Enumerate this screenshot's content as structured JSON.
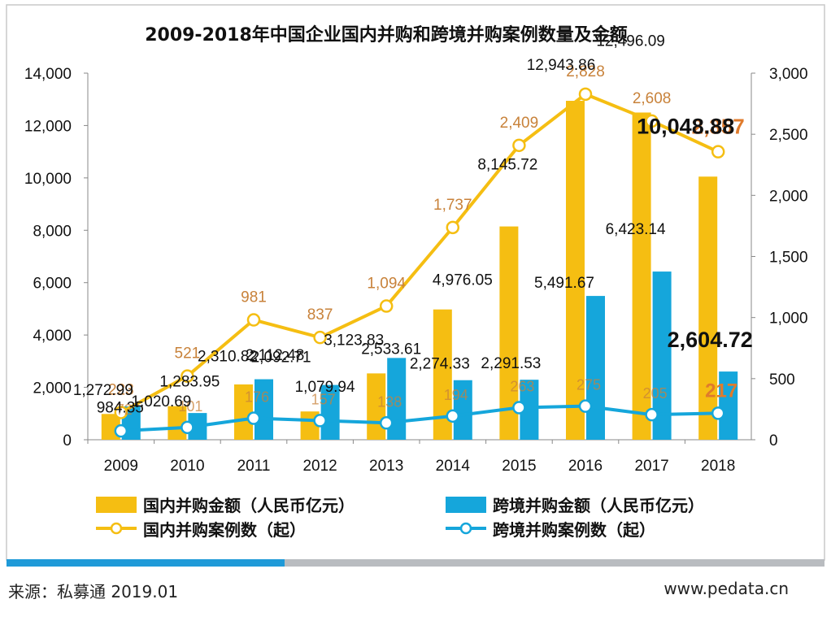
{
  "chart_data": {
    "type": "bar+line",
    "title": "2009-2018年中国企业国内并购和跨境并购案例数量及金额",
    "categories": [
      "2009",
      "2010",
      "2011",
      "2012",
      "2013",
      "2014",
      "2015",
      "2016",
      "2017",
      "2018"
    ],
    "left_axis": {
      "ylim": [
        0,
        14000
      ],
      "ticks": [
        "0",
        "2,000",
        "4,000",
        "6,000",
        "8,000",
        "10,000",
        "12,000",
        "14,000"
      ]
    },
    "right_axis": {
      "ylim": [
        0,
        3000
      ],
      "ticks": [
        "0",
        "500",
        "1,000",
        "1,500",
        "2,000",
        "2,500",
        "3,000"
      ]
    },
    "series": [
      {
        "name": "国内并购金额（人民币亿元）",
        "kind": "bar",
        "axis": "left",
        "color": "#f5be12",
        "values": [
          984.35,
          1283.95,
          2112.48,
          1079.94,
          2533.61,
          4976.05,
          8145.72,
          12943.86,
          12496.09,
          10048.88
        ],
        "labels": [
          "984.35",
          "1,283.95",
          "2,112.48",
          "1,079.94",
          "2,533.61",
          "4,976.05",
          "8,145.72",
          "12,943.86",
          "12,496.09",
          "10,048.88"
        ]
      },
      {
        "name": "跨境并购金额（人民币亿元）",
        "kind": "bar",
        "axis": "left",
        "color": "#15a6db",
        "values": [
          1272.99,
          1020.69,
          2310.82,
          2092.71,
          3123.83,
          2274.33,
          2291.53,
          5491.67,
          6423.14,
          2604.72
        ],
        "labels": [
          "1,272.99",
          "1,020.69",
          "2,310.82",
          "2,092.71",
          "3,123.83",
          "2,274.33",
          "2,291.53",
          "5,491.67",
          "6,423.14",
          "2,604.72"
        ]
      },
      {
        "name": "国内并购案例数（起）",
        "kind": "line",
        "axis": "right",
        "color": "#f5be12",
        "values": [
          223,
          521,
          981,
          837,
          1094,
          1737,
          2409,
          2828,
          2608,
          2357
        ],
        "labels": [
          "223",
          "521",
          "981",
          "837",
          "1,094",
          "1,737",
          "2,409",
          "2,828",
          "2,608",
          "2,357"
        ]
      },
      {
        "name": "跨境并购案例数（起）",
        "kind": "line",
        "axis": "right",
        "color": "#15a6db",
        "values": [
          72,
          101,
          176,
          157,
          138,
          194,
          263,
          275,
          205,
          217
        ],
        "labels": [
          "72",
          "101",
          "176",
          "157",
          "138",
          "194",
          "263",
          "275",
          "205",
          "217"
        ]
      }
    ],
    "colors": {
      "label_orange": "#c8823a",
      "label_dark": "#111111",
      "highlight_orange": "#e07b2c"
    }
  },
  "footer": {
    "source": "来源：私募通 2019.01",
    "website": "www.pedata.cn"
  },
  "progress_fraction": 0.34
}
